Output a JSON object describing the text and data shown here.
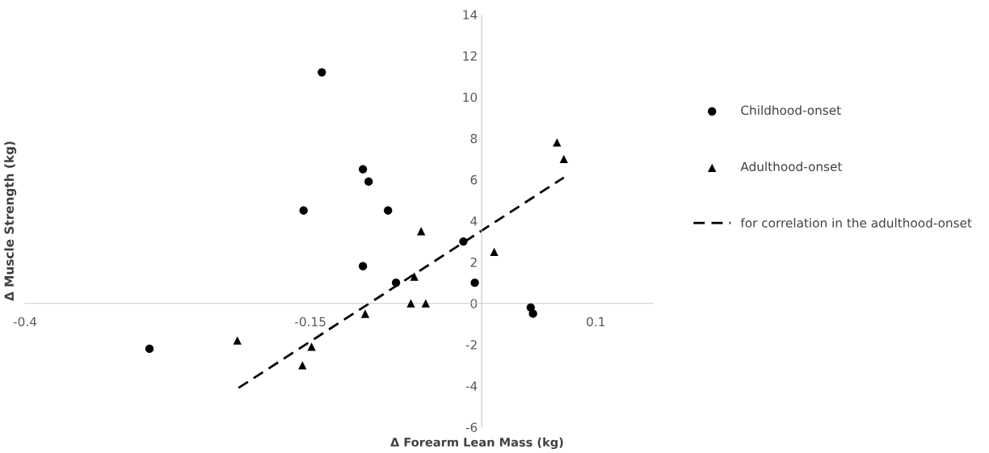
{
  "chart_data": {
    "type": "scatter",
    "xlabel": "Δ Forearm Lean Mass (kg)",
    "ylabel": "Δ Muscle Strength (kg)",
    "xlim": [
      -0.4,
      0.15
    ],
    "xticks": [
      -0.4,
      -0.15,
      0.1
    ],
    "ylim": [
      -6,
      14
    ],
    "yticks": [
      -6,
      -4,
      -2,
      0,
      2,
      4,
      6,
      8,
      10,
      12,
      14
    ],
    "grid": false,
    "legend": "right",
    "series": [
      {
        "name": "Childhood-onset",
        "color": "#000000",
        "marker": "circle",
        "x": [
          -0.14,
          -0.291,
          -0.156,
          -0.104,
          -0.099,
          -0.082,
          -0.104,
          -0.075,
          -0.016,
          -0.006,
          0.043,
          0.045
        ],
        "values": [
          11.2,
          -2.2,
          4.5,
          6.5,
          5.9,
          4.5,
          1.8,
          1.0,
          3.0,
          1.0,
          -0.2,
          -0.5
        ]
      },
      {
        "name": "Adulthood-onset",
        "color": "#000000",
        "marker": "triangle",
        "x": [
          -0.214,
          -0.149,
          -0.157,
          -0.102,
          -0.062,
          -0.049,
          -0.059,
          -0.053,
          0.011,
          0.066,
          0.072
        ],
        "values": [
          -1.8,
          -2.1,
          -3.0,
          -0.5,
          0.0,
          0.0,
          1.3,
          3.5,
          2.5,
          7.8,
          7.0
        ]
      },
      {
        "name": "for correlation in the adulthood-onset",
        "type": "line",
        "color": "#000000",
        "marker": "none",
        "line_style": "dashed",
        "x": [
          -0.213,
          0.072
        ],
        "values": [
          -4.1,
          6.1
        ]
      }
    ]
  }
}
